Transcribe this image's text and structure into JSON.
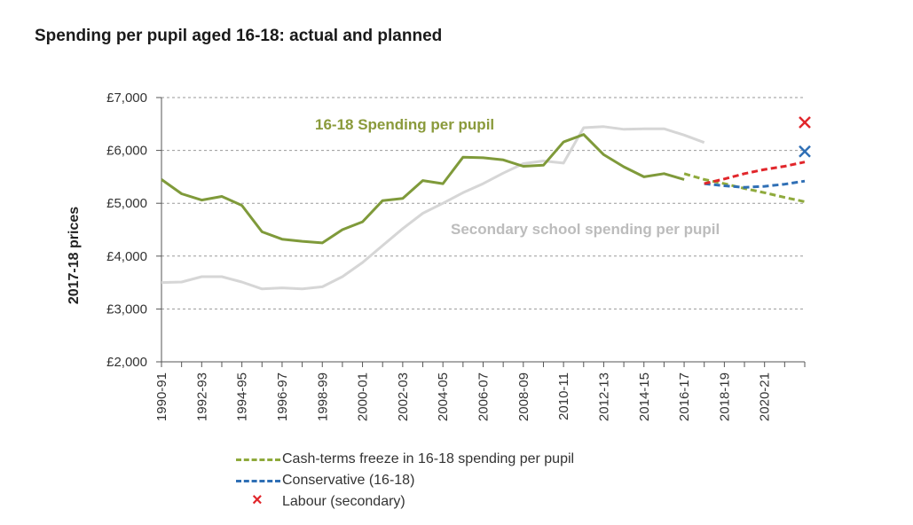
{
  "chart_data": {
    "type": "line",
    "title": "Spending per pupil aged 16-18: actual and planned",
    "ylabel": "2017-18 prices",
    "ylim": [
      2000,
      7000
    ],
    "yticks": [
      2000,
      3000,
      4000,
      5000,
      6000,
      7000
    ],
    "ytick_labels": [
      "£2,000",
      "£3,000",
      "£4,000",
      "£5,000",
      "£6,000",
      "£7,000"
    ],
    "xticks": [
      "1990-91",
      "1992-93",
      "1994-95",
      "1996-97",
      "1998-99",
      "2000-01",
      "2002-03",
      "2004-05",
      "2006-07",
      "2008-09",
      "2010-11",
      "2012-13",
      "2014-15",
      "2016-17",
      "2018-19",
      "2020-21"
    ],
    "x_start_year": 1990,
    "grid": "horizontal dashed",
    "annotations": [
      {
        "text": "16-18 Spending per pupil",
        "color": "#8a9a3b"
      },
      {
        "text": "Secondary school spending per pupil",
        "color": "#b8b8b8"
      }
    ],
    "series": [
      {
        "name": "16-18 Spending per pupil",
        "color": "#7f9a3a",
        "style": "solid",
        "x": [
          1990,
          1991,
          1992,
          1993,
          1994,
          1995,
          1996,
          1997,
          1998,
          1999,
          2000,
          2001,
          2002,
          2003,
          2004,
          2005,
          2006,
          2007,
          2008,
          2009,
          2010,
          2011,
          2012,
          2013,
          2014,
          2015,
          2016
        ],
        "values": [
          5450,
          5180,
          5060,
          5130,
          4960,
          4460,
          4320,
          4280,
          4250,
          4500,
          4650,
          5050,
          5090,
          5430,
          5370,
          5870,
          5860,
          5820,
          5700,
          5720,
          6160,
          6300,
          5920,
          5690,
          5500,
          5560,
          5450
        ]
      },
      {
        "name": "Secondary school spending per pupil",
        "color": "#d6d6d6",
        "style": "solid",
        "x": [
          1990,
          1991,
          1992,
          1993,
          1994,
          1995,
          1996,
          1997,
          1998,
          1999,
          2000,
          2001,
          2002,
          2003,
          2004,
          2005,
          2006,
          2007,
          2008,
          2009,
          2010,
          2011,
          2012,
          2013,
          2014,
          2015,
          2016,
          2017
        ],
        "values": [
          3500,
          3510,
          3610,
          3610,
          3510,
          3380,
          3400,
          3380,
          3420,
          3610,
          3880,
          4200,
          4520,
          4810,
          5000,
          5200,
          5370,
          5570,
          5750,
          5800,
          5760,
          6430,
          6450,
          6400,
          6410,
          6410,
          6290,
          6150
        ]
      },
      {
        "name": "Cash-terms freeze in 16-18 spending per pupil",
        "color": "#8faa3c",
        "style": "dashed",
        "x": [
          2016,
          2017,
          2018,
          2019,
          2020,
          2021,
          2022
        ],
        "values": [
          5560,
          5450,
          5370,
          5280,
          5200,
          5110,
          5030
        ]
      },
      {
        "name": "Conservative (16-18)",
        "color": "#2f6fb5",
        "style": "dashed",
        "x": [
          2017,
          2018,
          2019,
          2020,
          2021,
          2022
        ],
        "values": [
          5370,
          5330,
          5300,
          5320,
          5360,
          5420
        ]
      },
      {
        "name": "Labour dashed",
        "color": "#e1262b",
        "style": "dashed",
        "x": [
          2017,
          2018,
          2019,
          2020,
          2021,
          2022
        ],
        "values": [
          5370,
          5460,
          5560,
          5640,
          5700,
          5780
        ]
      }
    ],
    "markers": [
      {
        "name": "Labour (secondary)",
        "color": "#e1262b",
        "x": 2022,
        "y": 6530
      },
      {
        "name": "Conservative marker",
        "color": "#2f6fb5",
        "x": 2022,
        "y": 5980
      }
    ],
    "legend": {
      "placement": "bottom",
      "items": [
        {
          "label": "Cash-terms freeze in 16-18 spending per pupil",
          "color": "#8faa3c",
          "kind": "dash"
        },
        {
          "label": "Conservative (16-18)",
          "color": "#2f6fb5",
          "kind": "dash"
        },
        {
          "label": "Labour (secondary)",
          "color": "#e1262b",
          "kind": "x"
        }
      ]
    }
  }
}
